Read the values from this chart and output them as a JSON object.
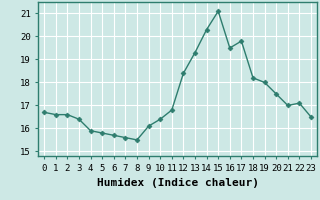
{
  "x": [
    0,
    1,
    2,
    3,
    4,
    5,
    6,
    7,
    8,
    9,
    10,
    11,
    12,
    13,
    14,
    15,
    16,
    17,
    18,
    19,
    20,
    21,
    22,
    23
  ],
  "y": [
    16.7,
    16.6,
    16.6,
    16.4,
    15.9,
    15.8,
    15.7,
    15.6,
    15.5,
    16.1,
    16.4,
    16.8,
    18.4,
    19.3,
    20.3,
    21.1,
    19.5,
    19.8,
    18.2,
    18.0,
    17.5,
    17.0,
    17.1,
    16.5
  ],
  "line_color": "#2e7d6e",
  "marker": "D",
  "marker_size": 2.5,
  "bg_color": "#cde8e5",
  "grid_color": "#ffffff",
  "xlabel": "Humidex (Indice chaleur)",
  "xlabel_fontsize": 8,
  "ylim": [
    14.8,
    21.5
  ],
  "xlim": [
    -0.5,
    23.5
  ],
  "yticks": [
    15,
    16,
    17,
    18,
    19,
    20,
    21
  ],
  "xticks": [
    0,
    1,
    2,
    3,
    4,
    5,
    6,
    7,
    8,
    9,
    10,
    11,
    12,
    13,
    14,
    15,
    16,
    17,
    18,
    19,
    20,
    21,
    22,
    23
  ],
  "tick_fontsize": 6.5,
  "line_width": 1.0
}
